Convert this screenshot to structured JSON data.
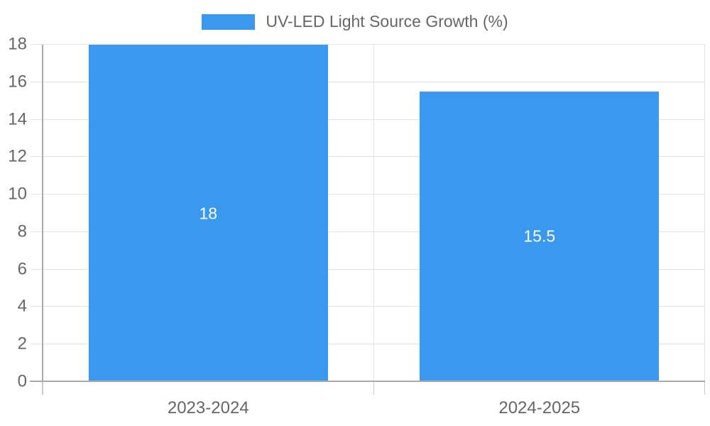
{
  "chart_data": {
    "type": "bar",
    "title": "UV-LED Light Source Growth (%)",
    "categories": [
      "2023-2024",
      "2024-2025"
    ],
    "values": [
      18,
      15.5
    ],
    "value_labels": [
      "18",
      "15.5"
    ],
    "ylabel": "",
    "xlabel": "",
    "ylim": [
      0,
      18
    ],
    "ytick_step": 2,
    "yticks": [
      0,
      2,
      4,
      6,
      8,
      10,
      12,
      14,
      16,
      18
    ],
    "grid": true,
    "legend_position": "top",
    "legend_entries": [
      "UV-LED Light Source Growth (%)"
    ]
  },
  "colors": {
    "bar": "#3a99ee",
    "grid": "#e3e3e3",
    "axis": "#a9a9a9",
    "tick": "#c9c9c9",
    "text": "#666666",
    "value_text": "#ffffff",
    "background": "#ffffff"
  }
}
